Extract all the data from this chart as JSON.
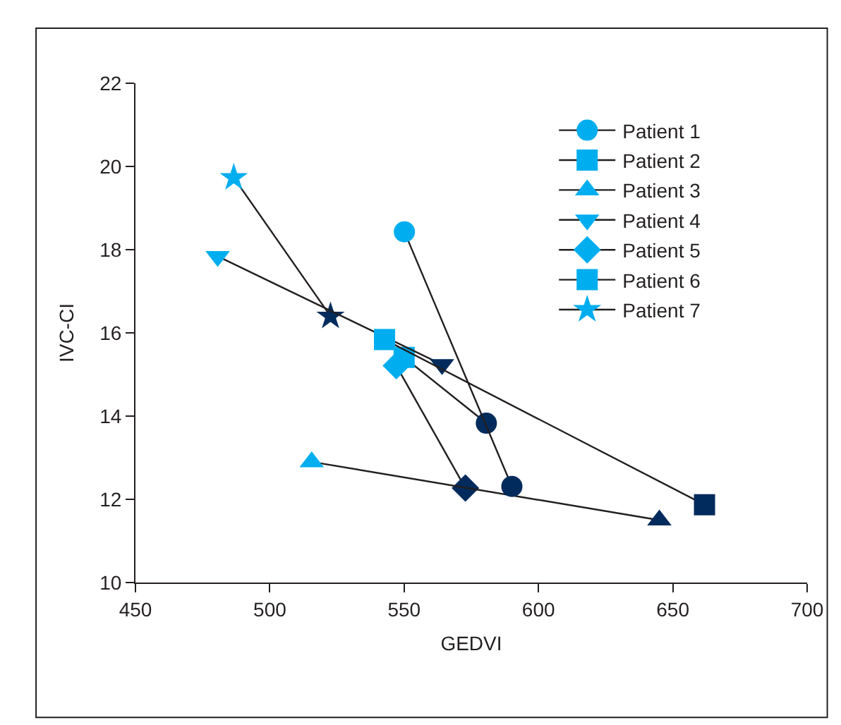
{
  "chart_data": {
    "type": "line",
    "xlabel": "GEDVI",
    "ylabel": "IVC-CI",
    "xlim": [
      450,
      700
    ],
    "xticks": [
      450,
      500,
      550,
      600,
      650,
      700
    ],
    "ylim": [
      10,
      22
    ],
    "yticks": [
      10,
      12,
      14,
      16,
      18,
      20,
      22
    ],
    "legend": "top right",
    "line_style": "solid",
    "series": [
      {
        "name": "Patient 1",
        "marker": "circle",
        "color": "#231f20",
        "colors": [
          "#00aeef",
          "#002b5c"
        ],
        "x": [
          550.1,
          590.1
        ],
        "values": [
          18.43,
          12.31
        ]
      },
      {
        "name": "Patient 2",
        "marker": "square",
        "color": "#231f20",
        "colors": [
          "#00aeef",
          "#002b5c"
        ],
        "x": [
          542.7,
          661.8
        ],
        "values": [
          15.84,
          11.87
        ]
      },
      {
        "name": "Patient 3",
        "marker": "triangle",
        "color": "#231f20",
        "colors": [
          "#00aeef",
          "#002b5c"
        ],
        "x": [
          515.6,
          645
        ],
        "values": [
          12.9,
          11.5
        ]
      },
      {
        "name": "Patient 4",
        "marker": "triangle-down",
        "color": "#231f20",
        "colors": [
          "#00aeef",
          "#002b5c"
        ],
        "x": [
          480.6,
          564.1
        ],
        "values": [
          17.84,
          15.24
        ]
      },
      {
        "name": "Patient 5",
        "marker": "diamond",
        "color": "#231f20",
        "colors": [
          "#00aeef",
          "#002b5c"
        ],
        "x": [
          547.1,
          572.8
        ],
        "values": [
          15.21,
          12.27
        ]
      },
      {
        "name": "Patient 6",
        "marker": [
          "square",
          "circle"
        ],
        "color": "#231f20",
        "colors": [
          "#00aeef",
          "#002b5c"
        ],
        "x": [
          550,
          580.6
        ],
        "values": [
          15.41,
          13.83
        ]
      },
      {
        "name": "Patient 7",
        "marker": "star",
        "color": "#231f20",
        "colors": [
          "#00aeef",
          "#002b5c"
        ],
        "x": [
          486.6,
          522.6
        ],
        "values": [
          19.73,
          16.4
        ]
      }
    ]
  }
}
